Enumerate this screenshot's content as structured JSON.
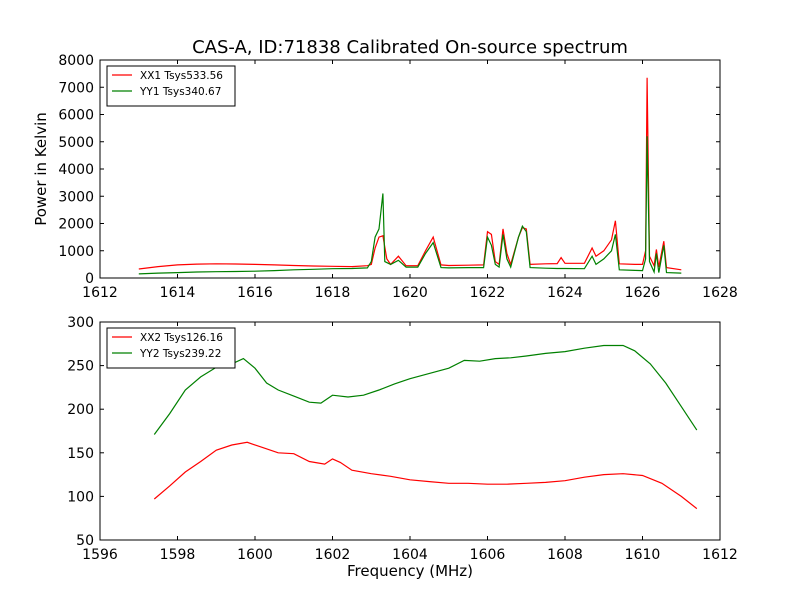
{
  "figure_title": "CAS-A, ID:71838 Calibrated On-source spectrum",
  "chart_data": [
    {
      "type": "line",
      "ylabel": "Power in Kelvin",
      "xlim": [
        1612,
        1628
      ],
      "ylim": [
        0,
        8000
      ],
      "x_ticks": [
        1612,
        1614,
        1616,
        1618,
        1620,
        1622,
        1624,
        1626,
        1628
      ],
      "y_ticks": [
        0,
        1000,
        2000,
        3000,
        4000,
        5000,
        6000,
        7000,
        8000
      ],
      "grid": false,
      "legend_position": "top-left",
      "series": [
        {
          "name": "XX1 Tsys533.56",
          "color": "#ff0000",
          "points": [
            [
              1613.0,
              330
            ],
            [
              1613.5,
              420
            ],
            [
              1614.0,
              480
            ],
            [
              1614.5,
              510
            ],
            [
              1615.0,
              520
            ],
            [
              1615.5,
              515
            ],
            [
              1616.0,
              500
            ],
            [
              1616.5,
              480
            ],
            [
              1617.0,
              460
            ],
            [
              1617.5,
              440
            ],
            [
              1618.0,
              430
            ],
            [
              1618.5,
              420
            ],
            [
              1618.9,
              450
            ],
            [
              1619.0,
              500
            ],
            [
              1619.1,
              1100
            ],
            [
              1619.2,
              1500
            ],
            [
              1619.3,
              1550
            ],
            [
              1619.4,
              700
            ],
            [
              1619.5,
              500
            ],
            [
              1619.7,
              800
            ],
            [
              1619.9,
              450
            ],
            [
              1620.2,
              450
            ],
            [
              1620.4,
              1000
            ],
            [
              1620.6,
              1500
            ],
            [
              1620.8,
              480
            ],
            [
              1621.0,
              460
            ],
            [
              1621.5,
              470
            ],
            [
              1621.9,
              480
            ],
            [
              1622.0,
              1700
            ],
            [
              1622.1,
              1600
            ],
            [
              1622.2,
              600
            ],
            [
              1622.3,
              500
            ],
            [
              1622.4,
              1800
            ],
            [
              1622.5,
              900
            ],
            [
              1622.6,
              500
            ],
            [
              1622.8,
              1500
            ],
            [
              1622.9,
              1850
            ],
            [
              1623.0,
              1800
            ],
            [
              1623.1,
              500
            ],
            [
              1623.5,
              520
            ],
            [
              1623.8,
              530
            ],
            [
              1623.9,
              750
            ],
            [
              1624.0,
              540
            ],
            [
              1624.5,
              540
            ],
            [
              1624.7,
              1100
            ],
            [
              1624.8,
              800
            ],
            [
              1625.0,
              1000
            ],
            [
              1625.2,
              1400
            ],
            [
              1625.3,
              2100
            ],
            [
              1625.4,
              520
            ],
            [
              1625.8,
              500
            ],
            [
              1626.0,
              500
            ],
            [
              1626.08,
              1000
            ],
            [
              1626.12,
              7350
            ],
            [
              1626.18,
              800
            ],
            [
              1626.3,
              450
            ],
            [
              1626.36,
              1050
            ],
            [
              1626.42,
              400
            ],
            [
              1626.55,
              1350
            ],
            [
              1626.62,
              380
            ],
            [
              1627.0,
              300
            ]
          ]
        },
        {
          "name": "YY1 Tsys340.67",
          "color": "#008000",
          "points": [
            [
              1613.0,
              150
            ],
            [
              1613.5,
              180
            ],
            [
              1614.0,
              200
            ],
            [
              1614.5,
              220
            ],
            [
              1615.0,
              230
            ],
            [
              1615.5,
              240
            ],
            [
              1616.0,
              250
            ],
            [
              1616.5,
              270
            ],
            [
              1617.0,
              300
            ],
            [
              1617.5,
              320
            ],
            [
              1618.0,
              340
            ],
            [
              1618.5,
              350
            ],
            [
              1618.9,
              370
            ],
            [
              1619.0,
              600
            ],
            [
              1619.1,
              1500
            ],
            [
              1619.2,
              1800
            ],
            [
              1619.3,
              3100
            ],
            [
              1619.35,
              600
            ],
            [
              1619.5,
              500
            ],
            [
              1619.7,
              650
            ],
            [
              1619.9,
              400
            ],
            [
              1620.2,
              400
            ],
            [
              1620.4,
              900
            ],
            [
              1620.6,
              1300
            ],
            [
              1620.8,
              380
            ],
            [
              1621.0,
              370
            ],
            [
              1621.5,
              380
            ],
            [
              1621.9,
              380
            ],
            [
              1622.0,
              1500
            ],
            [
              1622.1,
              1200
            ],
            [
              1622.2,
              500
            ],
            [
              1622.3,
              400
            ],
            [
              1622.4,
              1600
            ],
            [
              1622.5,
              700
            ],
            [
              1622.6,
              400
            ],
            [
              1622.8,
              1500
            ],
            [
              1622.9,
              1900
            ],
            [
              1623.0,
              1700
            ],
            [
              1623.1,
              380
            ],
            [
              1623.5,
              360
            ],
            [
              1623.8,
              350
            ],
            [
              1624.0,
              350
            ],
            [
              1624.5,
              340
            ],
            [
              1624.7,
              800
            ],
            [
              1624.8,
              500
            ],
            [
              1625.0,
              700
            ],
            [
              1625.2,
              1000
            ],
            [
              1625.3,
              1600
            ],
            [
              1625.4,
              300
            ],
            [
              1625.8,
              280
            ],
            [
              1626.0,
              270
            ],
            [
              1626.08,
              700
            ],
            [
              1626.12,
              5200
            ],
            [
              1626.18,
              600
            ],
            [
              1626.3,
              220
            ],
            [
              1626.36,
              900
            ],
            [
              1626.42,
              200
            ],
            [
              1626.55,
              1200
            ],
            [
              1626.62,
              200
            ],
            [
              1627.0,
              180
            ]
          ]
        }
      ]
    },
    {
      "type": "line",
      "xlabel": "Frequency (MHz)",
      "xlim": [
        1596,
        1612
      ],
      "ylim": [
        50,
        300
      ],
      "x_ticks": [
        1596,
        1598,
        1600,
        1602,
        1604,
        1606,
        1608,
        1610,
        1612
      ],
      "y_ticks": [
        50,
        100,
        150,
        200,
        250,
        300
      ],
      "grid": false,
      "legend_position": "top-left",
      "series": [
        {
          "name": "XX2 Tsys126.16",
          "color": "#ff0000",
          "points": [
            [
              1597.4,
              97
            ],
            [
              1597.8,
              112
            ],
            [
              1598.2,
              128
            ],
            [
              1598.6,
              140
            ],
            [
              1599.0,
              153
            ],
            [
              1599.4,
              159
            ],
            [
              1599.8,
              162
            ],
            [
              1600.2,
              156
            ],
            [
              1600.6,
              150
            ],
            [
              1601.0,
              149
            ],
            [
              1601.4,
              140
            ],
            [
              1601.8,
              137
            ],
            [
              1602.0,
              143
            ],
            [
              1602.2,
              139
            ],
            [
              1602.5,
              130
            ],
            [
              1603.0,
              126
            ],
            [
              1603.5,
              123
            ],
            [
              1604.0,
              119
            ],
            [
              1604.5,
              117
            ],
            [
              1605.0,
              115
            ],
            [
              1605.5,
              115
            ],
            [
              1606.0,
              114
            ],
            [
              1606.5,
              114
            ],
            [
              1607.0,
              115
            ],
            [
              1607.5,
              116
            ],
            [
              1608.0,
              118
            ],
            [
              1608.5,
              122
            ],
            [
              1609.0,
              125
            ],
            [
              1609.5,
              126
            ],
            [
              1610.0,
              124
            ],
            [
              1610.5,
              115
            ],
            [
              1611.0,
              100
            ],
            [
              1611.4,
              86
            ]
          ]
        },
        {
          "name": "YY2 Tsys239.22",
          "color": "#008000",
          "points": [
            [
              1597.4,
              171
            ],
            [
              1597.8,
              195
            ],
            [
              1598.2,
              222
            ],
            [
              1598.6,
              237
            ],
            [
              1599.0,
              248
            ],
            [
              1599.4,
              252
            ],
            [
              1599.7,
              258
            ],
            [
              1600.0,
              247
            ],
            [
              1600.3,
              230
            ],
            [
              1600.6,
              222
            ],
            [
              1601.0,
              215
            ],
            [
              1601.4,
              208
            ],
            [
              1601.7,
              207
            ],
            [
              1602.0,
              216
            ],
            [
              1602.4,
              214
            ],
            [
              1602.8,
              216
            ],
            [
              1603.2,
              222
            ],
            [
              1603.6,
              229
            ],
            [
              1604.0,
              235
            ],
            [
              1604.5,
              241
            ],
            [
              1605.0,
              247
            ],
            [
              1605.4,
              256
            ],
            [
              1605.8,
              255
            ],
            [
              1606.2,
              258
            ],
            [
              1606.6,
              259
            ],
            [
              1607.0,
              261
            ],
            [
              1607.5,
              264
            ],
            [
              1608.0,
              266
            ],
            [
              1608.5,
              270
            ],
            [
              1609.0,
              273
            ],
            [
              1609.5,
              273
            ],
            [
              1609.8,
              267
            ],
            [
              1610.2,
              252
            ],
            [
              1610.6,
              230
            ],
            [
              1611.0,
              203
            ],
            [
              1611.4,
              176
            ]
          ]
        }
      ]
    }
  ]
}
